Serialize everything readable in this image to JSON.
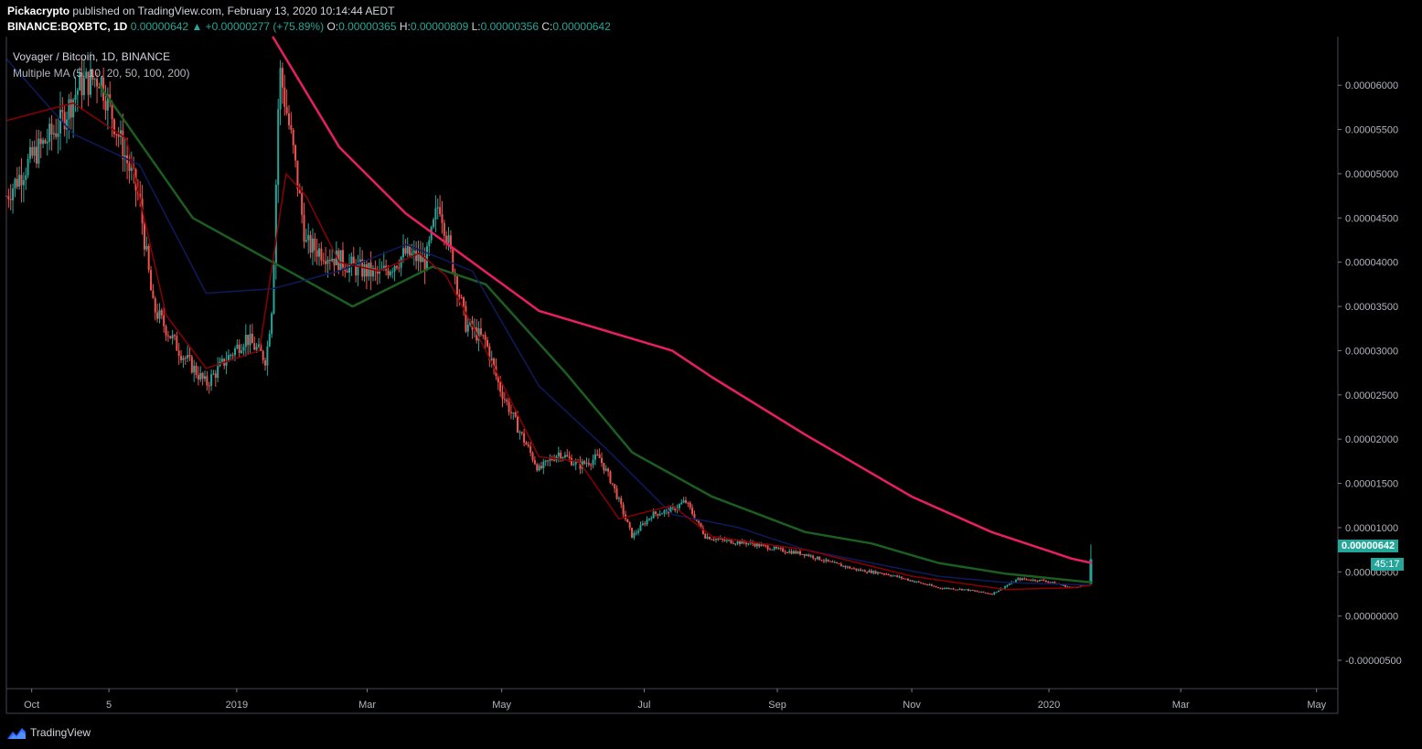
{
  "header": {
    "publisher": "Pickacrypto",
    "published_text": "published on TradingView.com, February 13, 2020 10:14:44 AEDT",
    "symbol": "BINANCE:BQXBTC, 1D",
    "last": "0.00000642",
    "change": "▲ +0.00000277 (+75.89%)",
    "o_label": "O:",
    "o_val": "0.00000365",
    "h_label": "H:",
    "h_val": "0.00000809",
    "l_label": "L:",
    "l_val": "0.00000356",
    "c_label": "C:",
    "c_val": "0.00000642"
  },
  "legend": {
    "title": "Voyager / Bitcoin, 1D, BINANCE",
    "indicator": "Multiple MA (5, 10, 20, 50, 100, 200)"
  },
  "price_tags": {
    "last_price": "0.00000642",
    "countdown": "45:17"
  },
  "footer": {
    "brand": "TradingView"
  },
  "colors": {
    "up": "#26a69a",
    "down": "#ef5350",
    "ma200": "#e91e63",
    "ma100": "#1b5e20",
    "ma20": "#8b0000",
    "ma50": "#0d1b5e",
    "background": "#000000"
  },
  "chart_data": {
    "type": "candlestick",
    "x_tick_labels": [
      "Oct",
      "5",
      "2019",
      "Mar",
      "May",
      "Jul",
      "Sep",
      "Nov",
      "2020",
      "Mar",
      "May"
    ],
    "y_tick_labels": [
      "0.00006000",
      "0.00005500",
      "0.00005000",
      "0.00004500",
      "0.00004000",
      "0.00003500",
      "0.00003000",
      "0.00002500",
      "0.00002000",
      "0.00001500",
      "0.00001000",
      "0.00000500",
      "0.00000000",
      "-0.00000500"
    ],
    "y_ticks": [
      6e-05,
      5.5e-05,
      5e-05,
      4.5e-05,
      4e-05,
      3.5e-05,
      3e-05,
      2.5e-05,
      2e-05,
      1.5e-05,
      1e-05,
      5e-06,
      0,
      -5e-06
    ],
    "ylim": [
      -8.2e-06,
      6.55e-05
    ],
    "price_path": [
      [
        0,
        4.75e-05
      ],
      [
        0.02,
        5.2e-05
      ],
      [
        0.04,
        5.55e-05
      ],
      [
        0.055,
        6e-05
      ],
      [
        0.07,
        6.1e-05
      ],
      [
        0.085,
        5.4e-05
      ],
      [
        0.1,
        4.7e-05
      ],
      [
        0.11,
        3.5e-05
      ],
      [
        0.13,
        3e-05
      ],
      [
        0.15,
        2.62e-05
      ],
      [
        0.165,
        2.9e-05
      ],
      [
        0.18,
        3.15e-05
      ],
      [
        0.195,
        2.9e-05
      ],
      [
        0.2,
        3.6e-05
      ],
      [
        0.205,
        6.2e-05
      ],
      [
        0.215,
        5.3e-05
      ],
      [
        0.225,
        4.2e-05
      ],
      [
        0.24,
        4.1e-05
      ],
      [
        0.26,
        3.95e-05
      ],
      [
        0.28,
        3.85e-05
      ],
      [
        0.3,
        4.1e-05
      ],
      [
        0.315,
        4e-05
      ],
      [
        0.325,
        4.7e-05
      ],
      [
        0.335,
        4e-05
      ],
      [
        0.345,
        3.3e-05
      ],
      [
        0.36,
        3.1e-05
      ],
      [
        0.37,
        2.6e-05
      ],
      [
        0.385,
        2.1e-05
      ],
      [
        0.4,
        1.65e-05
      ],
      [
        0.415,
        1.85e-05
      ],
      [
        0.43,
        1.7e-05
      ],
      [
        0.445,
        1.8e-05
      ],
      [
        0.455,
        1.5e-05
      ],
      [
        0.47,
        9e-06
      ],
      [
        0.485,
        1.15e-05
      ],
      [
        0.5,
        1.2e-05
      ],
      [
        0.51,
        1.3e-05
      ],
      [
        0.525,
        9e-06
      ],
      [
        0.54,
        8.5e-06
      ],
      [
        0.56,
        8.2e-06
      ],
      [
        0.58,
        7.5e-06
      ],
      [
        0.6,
        7e-06
      ],
      [
        0.62,
        6e-06
      ],
      [
        0.64,
        5.2e-06
      ],
      [
        0.66,
        4.8e-06
      ],
      [
        0.68,
        4e-06
      ],
      [
        0.7,
        3.2e-06
      ],
      [
        0.72,
        3e-06
      ],
      [
        0.74,
        2.5e-06
      ],
      [
        0.76,
        4.2e-06
      ],
      [
        0.78,
        4e-06
      ],
      [
        0.8,
        3.2e-06
      ],
      [
        0.81,
        3.6e-06
      ],
      [
        0.815,
        6.4e-06
      ]
    ],
    "last_candle": {
      "open": 3.65e-06,
      "high": 8.09e-06,
      "low": 3.56e-06,
      "close": 6.42e-06
    },
    "ma_series": [
      {
        "id": "ma200",
        "points": [
          [
            0.2,
            6.9e-05
          ],
          [
            0.25,
            5.3e-05
          ],
          [
            0.3,
            4.55e-05
          ],
          [
            0.35,
            4e-05
          ],
          [
            0.4,
            3.45e-05
          ],
          [
            0.5,
            3e-05
          ],
          [
            0.53,
            2.7e-05
          ],
          [
            0.6,
            2.05e-05
          ],
          [
            0.68,
            1.35e-05
          ],
          [
            0.74,
            9.5e-06
          ],
          [
            0.8,
            6.5e-06
          ],
          [
            0.815,
            6e-06
          ]
        ]
      },
      {
        "id": "ma100",
        "points": [
          [
            0.07,
            6e-05
          ],
          [
            0.14,
            4.5e-05
          ],
          [
            0.2,
            4e-05
          ],
          [
            0.26,
            3.5e-05
          ],
          [
            0.32,
            3.95e-05
          ],
          [
            0.36,
            3.75e-05
          ],
          [
            0.42,
            2.75e-05
          ],
          [
            0.47,
            1.85e-05
          ],
          [
            0.53,
            1.35e-05
          ],
          [
            0.6,
            9.5e-06
          ],
          [
            0.65,
            8.2e-06
          ],
          [
            0.7,
            6e-06
          ],
          [
            0.75,
            4.8e-06
          ],
          [
            0.815,
            3.8e-06
          ]
        ]
      },
      {
        "id": "ma50",
        "points": [
          [
            0.0,
            6.3e-05
          ],
          [
            0.05,
            5.45e-05
          ],
          [
            0.1,
            5.1e-05
          ],
          [
            0.15,
            3.65e-05
          ],
          [
            0.2,
            3.7e-05
          ],
          [
            0.25,
            3.9e-05
          ],
          [
            0.3,
            4.2e-05
          ],
          [
            0.35,
            3.9e-05
          ],
          [
            0.4,
            2.6e-05
          ],
          [
            0.45,
            1.9e-05
          ],
          [
            0.5,
            1.15e-05
          ],
          [
            0.55,
            1e-05
          ],
          [
            0.6,
            7.5e-06
          ],
          [
            0.65,
            6e-06
          ],
          [
            0.7,
            4.5e-06
          ],
          [
            0.75,
            3.8e-06
          ],
          [
            0.815,
            3.5e-06
          ]
        ]
      },
      {
        "id": "ma20",
        "points": [
          [
            0.0,
            5.6e-05
          ],
          [
            0.05,
            5.8e-05
          ],
          [
            0.09,
            5.4e-05
          ],
          [
            0.12,
            3.4e-05
          ],
          [
            0.15,
            2.8e-05
          ],
          [
            0.19,
            3e-05
          ],
          [
            0.21,
            5e-05
          ],
          [
            0.225,
            4.75e-05
          ],
          [
            0.25,
            4e-05
          ],
          [
            0.28,
            3.9e-05
          ],
          [
            0.31,
            4.1e-05
          ],
          [
            0.33,
            3.85e-05
          ],
          [
            0.36,
            3e-05
          ],
          [
            0.4,
            1.8e-05
          ],
          [
            0.43,
            1.75e-05
          ],
          [
            0.46,
            1.1e-05
          ],
          [
            0.5,
            1.25e-05
          ],
          [
            0.53,
            9e-06
          ],
          [
            0.6,
            7.5e-06
          ],
          [
            0.68,
            4.5e-06
          ],
          [
            0.75,
            3e-06
          ],
          [
            0.8,
            3.2e-06
          ],
          [
            0.815,
            3.5e-06
          ]
        ]
      }
    ]
  }
}
